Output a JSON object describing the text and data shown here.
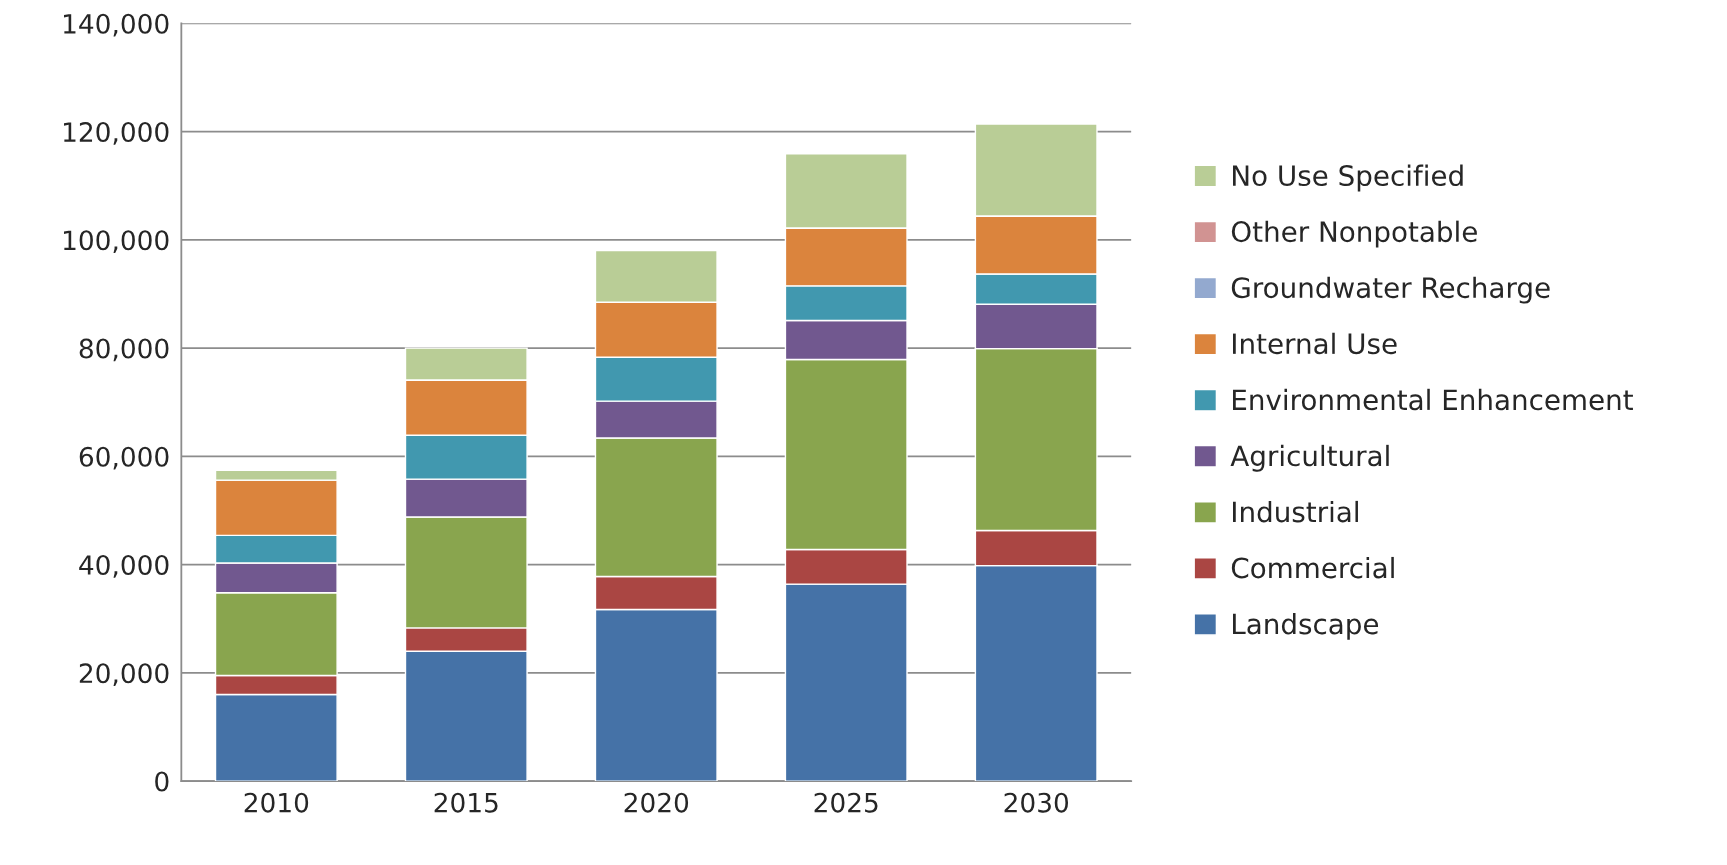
{
  "chart_data": {
    "type": "bar",
    "stacked": true,
    "categories": [
      "2010",
      "2015",
      "2020",
      "2025",
      "2030"
    ],
    "series": [
      {
        "name": "Landscape",
        "color": "#4572a7",
        "values": [
          16000,
          24000,
          31700,
          36400,
          39800
        ]
      },
      {
        "name": "Commercial",
        "color": "#aa4643",
        "values": [
          3500,
          4300,
          6100,
          6400,
          6500
        ]
      },
      {
        "name": "Industrial",
        "color": "#89a54e",
        "values": [
          15300,
          20500,
          25600,
          35100,
          33600
        ]
      },
      {
        "name": "Agricultural",
        "color": "#71588f",
        "values": [
          5500,
          7000,
          6800,
          7200,
          8200
        ]
      },
      {
        "name": "Environmental Enhancement",
        "color": "#4198af",
        "values": [
          5100,
          8100,
          8100,
          6400,
          5600
        ]
      },
      {
        "name": "Internal Use",
        "color": "#db843d",
        "values": [
          10200,
          10200,
          10200,
          10700,
          10700
        ]
      },
      {
        "name": "Groundwater Recharge",
        "color": "#93a9cf",
        "values": [
          0,
          0,
          0,
          0,
          0
        ]
      },
      {
        "name": "Other Nonpotable",
        "color": "#d19392",
        "values": [
          0,
          0,
          0,
          0,
          0
        ]
      },
      {
        "name": "No Use Specified",
        "color": "#b9cd96",
        "values": [
          1800,
          5900,
          9500,
          13700,
          17000
        ]
      }
    ],
    "ylim": [
      0,
      140000
    ],
    "yticks": [
      {
        "value": 0,
        "label": "0"
      },
      {
        "value": 20000,
        "label": "20,000"
      },
      {
        "value": 40000,
        "label": "40,000"
      },
      {
        "value": 60000,
        "label": "60,000"
      },
      {
        "value": 80000,
        "label": "80,000"
      },
      {
        "value": 100000,
        "label": "100,000"
      },
      {
        "value": 120000,
        "label": "120,000"
      },
      {
        "value": 140000,
        "label": "140,000"
      }
    ],
    "grid": "y",
    "legend": "right"
  }
}
